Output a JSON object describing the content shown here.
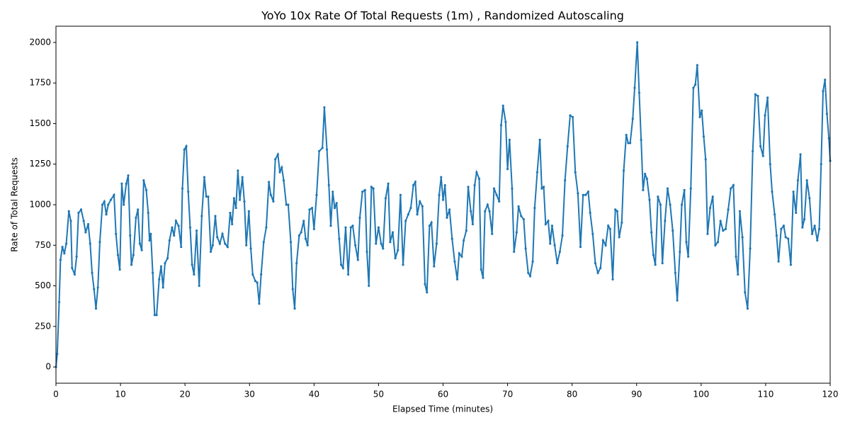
{
  "chart_data": {
    "type": "line",
    "title": "YoYo 10x Rate Of Total Requests (1m) , Randomized Autoscaling",
    "xlabel": "Elapsed Time (minutes)",
    "ylabel": "Rate of Total Requests",
    "color": "#1f77b4",
    "xlim": [
      0,
      120
    ],
    "xticks": [
      0,
      10,
      20,
      30,
      40,
      50,
      60,
      70,
      80,
      90,
      100,
      110,
      120
    ],
    "ylim": [
      -100,
      2100
    ],
    "yticks": [
      0,
      250,
      500,
      750,
      1000,
      1250,
      1500,
      1750,
      2000
    ],
    "x": [
      0,
      0.2,
      0.5,
      0.7,
      1,
      1.3,
      1.6,
      2,
      2.3,
      2.5,
      2.9,
      3.2,
      3.5,
      3.9,
      4.3,
      4.6,
      5,
      5.3,
      5.6,
      5.9,
      6.2,
      6.5,
      6.8,
      7.2,
      7.5,
      7.8,
      8.1,
      8.5,
      9,
      9.3,
      9.6,
      9.9,
      10.2,
      10.5,
      10.9,
      11.2,
      11.5,
      11.7,
      12,
      12.4,
      12.7,
      13,
      13.3,
      13.6,
      14,
      14.3,
      14.5,
      14.7,
      15,
      15.3,
      15.6,
      16,
      16.3,
      16.6,
      16.9,
      17.3,
      17.6,
      18,
      18.3,
      18.6,
      19,
      19.4,
      19.6,
      19.9,
      20.2,
      20.5,
      20.8,
      21.1,
      21.4,
      21.8,
      22.2,
      22.6,
      23,
      23.3,
      23.6,
      24,
      24.3,
      24.7,
      25,
      25.4,
      25.8,
      26.2,
      26.6,
      27,
      27.3,
      27.6,
      27.9,
      28.2,
      28.5,
      28.9,
      29.2,
      29.5,
      29.9,
      30.2,
      30.5,
      30.9,
      31.2,
      31.5,
      31.8,
      32.2,
      32.6,
      33,
      33.3,
      33.7,
      34,
      34.4,
      34.7,
      35,
      35.3,
      35.7,
      36,
      36.4,
      36.7,
      37,
      37.3,
      37.7,
      38,
      38.4,
      38.7,
      39,
      39.3,
      39.7,
      40,
      40.4,
      40.8,
      41.3,
      41.6,
      42,
      42.3,
      42.6,
      42.9,
      43.2,
      43.5,
      43.9,
      44.2,
      44.5,
      44.9,
      45.3,
      45.7,
      46,
      46.4,
      46.8,
      47.1,
      47.5,
      47.9,
      48.2,
      48.5,
      48.9,
      49.2,
      49.6,
      50,
      50.4,
      50.7,
      51.1,
      51.5,
      51.8,
      52.2,
      52.6,
      53,
      53.4,
      53.8,
      54.2,
      54.6,
      55,
      55.4,
      55.7,
      56,
      56.4,
      56.8,
      57.2,
      57.5,
      57.9,
      58.2,
      58.6,
      59,
      59.4,
      59.7,
      60,
      60.3,
      60.6,
      61,
      61.4,
      61.8,
      62.2,
      62.5,
      62.9,
      63.2,
      63.6,
      63.9,
      64.3,
      64.6,
      64.9,
      65.2,
      65.6,
      65.9,
      66.2,
      66.5,
      66.9,
      67.2,
      67.6,
      67.9,
      68.3,
      68.7,
      69,
      69.3,
      69.7,
      70,
      70.3,
      70.7,
      71,
      71.4,
      71.7,
      72.1,
      72.5,
      72.8,
      73.2,
      73.5,
      73.9,
      74.2,
      74.6,
      75,
      75.3,
      75.6,
      75.9,
      76.3,
      76.6,
      76.9,
      77.3,
      77.7,
      78.1,
      78.5,
      78.9,
      79.3,
      79.7,
      80.1,
      80.5,
      80.9,
      81.3,
      81.7,
      82.1,
      82.5,
      82.8,
      83.2,
      83.6,
      84,
      84.4,
      84.8,
      85.2,
      85.6,
      85.9,
      86.3,
      86.7,
      87,
      87.3,
      87.7,
      88,
      88.4,
      88.7,
      89,
      89.4,
      89.7,
      90.1,
      90.4,
      90.7,
      91,
      91.3,
      91.6,
      92,
      92.3,
      92.6,
      92.9,
      93.3,
      93.7,
      94,
      94.4,
      94.8,
      95.2,
      95.6,
      96,
      96.3,
      96.7,
      97,
      97.4,
      97.7,
      98,
      98.4,
      98.8,
      99.1,
      99.4,
      99.8,
      100.1,
      100.4,
      100.7,
      101,
      101.4,
      101.8,
      102.2,
      102.6,
      103,
      103.4,
      103.8,
      104.2,
      104.6,
      105,
      105.4,
      105.7,
      106,
      106.4,
      106.8,
      107.2,
      107.6,
      108,
      108.4,
      108.8,
      109.2,
      109.6,
      109.9,
      110.3,
      110.7,
      111,
      111.4,
      111.7,
      112,
      112.4,
      112.8,
      113.1,
      113.5,
      113.9,
      114.3,
      114.7,
      115,
      115.4,
      115.7,
      116,
      116.4,
      116.8,
      117.2,
      117.6,
      118,
      118.3,
      118.6,
      118.9,
      119.2,
      119.5,
      119.8,
      120
    ],
    "values": [
      0,
      80,
      400,
      660,
      740,
      700,
      760,
      960,
      900,
      610,
      570,
      680,
      950,
      970,
      900,
      830,
      880,
      760,
      580,
      480,
      360,
      490,
      770,
      1000,
      1020,
      940,
      1000,
      1030,
      1060,
      820,
      690,
      600,
      1130,
      1000,
      1130,
      1180,
      810,
      630,
      690,
      920,
      970,
      760,
      720,
      1150,
      1090,
      950,
      780,
      820,
      580,
      320,
      320,
      540,
      620,
      490,
      640,
      670,
      780,
      860,
      810,
      900,
      870,
      740,
      1100,
      1340,
      1360,
      1080,
      860,
      630,
      570,
      840,
      500,
      930,
      1170,
      1050,
      1050,
      710,
      750,
      930,
      800,
      760,
      820,
      760,
      740,
      950,
      880,
      1040,
      980,
      1210,
      1030,
      1170,
      1020,
      750,
      960,
      730,
      570,
      530,
      520,
      390,
      570,
      770,
      860,
      1140,
      1060,
      1020,
      1280,
      1310,
      1200,
      1230,
      1150,
      1000,
      1000,
      770,
      480,
      360,
      640,
      810,
      830,
      900,
      790,
      750,
      970,
      980,
      850,
      1060,
      1330,
      1350,
      1600,
      1340,
      1120,
      870,
      1080,
      980,
      1010,
      790,
      630,
      610,
      860,
      570,
      860,
      870,
      750,
      660,
      920,
      1080,
      1090,
      710,
      500,
      1110,
      1100,
      760,
      860,
      760,
      730,
      1040,
      1130,
      770,
      830,
      670,
      720,
      1060,
      630,
      900,
      940,
      980,
      1120,
      1140,
      940,
      1020,
      990,
      510,
      460,
      870,
      890,
      620,
      760,
      1060,
      1170,
      1030,
      1120,
      920,
      970,
      790,
      650,
      540,
      700,
      680,
      780,
      840,
      1110,
      960,
      880,
      1120,
      1200,
      1160,
      600,
      550,
      960,
      1000,
      960,
      820,
      1100,
      1060,
      1020,
      1490,
      1610,
      1510,
      1220,
      1400,
      1100,
      710,
      830,
      990,
      930,
      910,
      730,
      580,
      560,
      650,
      980,
      1200,
      1400,
      1100,
      1110,
      880,
      900,
      760,
      870,
      750,
      640,
      710,
      810,
      1150,
      1360,
      1550,
      1540,
      1200,
      1070,
      740,
      1060,
      1060,
      1080,
      950,
      820,
      640,
      580,
      610,
      780,
      750,
      870,
      850,
      540,
      970,
      960,
      800,
      890,
      1210,
      1430,
      1380,
      1380,
      1530,
      1720,
      2000,
      1690,
      1400,
      1090,
      1190,
      1160,
      1030,
      830,
      690,
      630,
      1050,
      1000,
      640,
      900,
      1100,
      1000,
      840,
      580,
      410,
      710,
      1000,
      1090,
      770,
      680,
      1100,
      1720,
      1740,
      1860,
      1540,
      1580,
      1420,
      1280,
      820,
      980,
      1050,
      750,
      770,
      900,
      840,
      850,
      970,
      1100,
      1120,
      680,
      570,
      960,
      800,
      460,
      360,
      730,
      1330,
      1680,
      1670,
      1360,
      1300,
      1550,
      1660,
      1250,
      1080,
      940,
      810,
      650,
      850,
      870,
      800,
      790,
      630,
      1080,
      950,
      1150,
      1310,
      860,
      910,
      1150,
      1040,
      820,
      870,
      780,
      850,
      1250,
      1700,
      1770,
      1560,
      1410,
      1270
    ]
  }
}
